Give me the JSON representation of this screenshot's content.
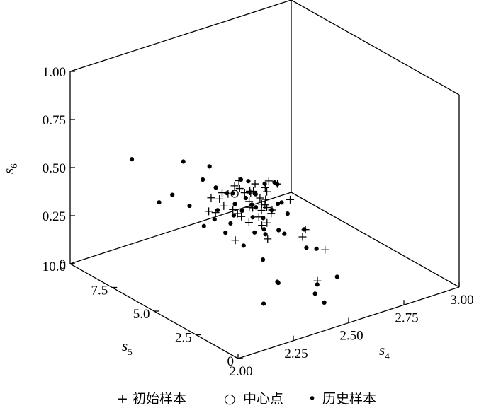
{
  "chart_data": {
    "type": "scatter",
    "projection": "3d",
    "axes": {
      "x": {
        "label": "s",
        "subscript": "4",
        "range": [
          2.0,
          3.0
        ],
        "ticks": [
          "2.00",
          "2.25",
          "2.50",
          "2.75",
          "3.00"
        ]
      },
      "y": {
        "label": "s",
        "subscript": "5",
        "range": [
          0,
          10.0
        ],
        "ticks": [
          "0",
          "2.5",
          "5.0",
          "7.5",
          "10.0"
        ]
      },
      "z": {
        "label": "s",
        "subscript": "6",
        "range": [
          0,
          1.0
        ],
        "ticks": [
          "0",
          "0.25",
          "0.50",
          "0.75",
          "1.00"
        ]
      }
    },
    "grid": false,
    "legend_position": "bottom",
    "legend": [
      {
        "symbol": "+",
        "label": "初始样本"
      },
      {
        "symbol": "○",
        "label": "中心点"
      },
      {
        "symbol": "•",
        "label": "历史样本"
      }
    ],
    "series": [
      {
        "name": "初始样本",
        "marker": "plus",
        "points": [
          [
            2.31,
            4.29,
            0.571
          ],
          [
            2.25,
            4.4,
            0.52
          ],
          [
            2.44,
            2.69,
            0.53
          ],
          [
            2.35,
            4.56,
            0.57
          ],
          [
            2.39,
            4.12,
            0.56
          ],
          [
            2.33,
            4.94,
            0.49
          ],
          [
            2.42,
            3.7,
            0.585
          ],
          [
            2.3,
            4.9,
            0.509
          ],
          [
            2.36,
            4.35,
            0.514
          ],
          [
            2.38,
            4.09,
            0.527
          ],
          [
            2.27,
            5.16,
            0.481
          ],
          [
            2.4,
            3.65,
            0.56
          ],
          [
            2.36,
            4.04,
            0.537
          ],
          [
            2.44,
            3.77,
            0.423
          ],
          [
            2.37,
            4.0,
            0.449
          ],
          [
            2.3,
            4.8,
            0.445
          ],
          [
            2.41,
            3.69,
            0.451
          ],
          [
            2.39,
            3.83,
            0.501
          ],
          [
            2.36,
            4.08,
            0.482
          ],
          [
            2.38,
            3.61,
            0.451
          ],
          [
            2.32,
            4.52,
            0.433
          ],
          [
            2.35,
            4.64,
            0.395
          ],
          [
            2.43,
            3.69,
            0.413
          ],
          [
            2.28,
            5.03,
            0.407
          ],
          [
            2.39,
            4.47,
            0.421
          ],
          [
            2.35,
            4.41,
            0.391
          ],
          [
            2.27,
            5.3,
            0.404
          ],
          [
            2.43,
            4.06,
            0.439
          ],
          [
            2.4,
            3.63,
            0.5
          ],
          [
            2.45,
            3.58,
            0.564
          ],
          [
            2.37,
            4.12,
            0.52
          ],
          [
            2.34,
            4.38,
            0.542
          ],
          [
            2.43,
            3.95,
            0.513
          ],
          [
            2.41,
            3.99,
            0.454
          ],
          [
            2.36,
            4.09,
            0.372
          ],
          [
            2.4,
            4.03,
            0.389
          ],
          [
            2.41,
            3.98,
            0.344
          ],
          [
            2.43,
            3.94,
            0.351
          ],
          [
            2.43,
            3.9,
            0.27
          ],
          [
            2.34,
            4.64,
            0.26
          ],
          [
            2.5,
            2.57,
            0.358
          ],
          [
            2.48,
            2.48,
            0.332
          ],
          [
            2.52,
            1.67,
            0.29
          ],
          [
            2.46,
            1.33,
            0.167
          ]
        ]
      },
      {
        "name": "中心点",
        "marker": "circle",
        "points": [
          [
            2.33,
            4.55,
            0.51
          ]
        ]
      },
      {
        "name": "历史样本",
        "marker": "dot",
        "points": [
          [
            2.18,
            5.63,
            0.68
          ],
          [
            2.06,
            7.12,
            0.663
          ],
          [
            2.24,
            4.86,
            0.67
          ],
          [
            2.33,
            4.18,
            0.602
          ],
          [
            2.22,
            5.0,
            0.602
          ],
          [
            2.39,
            3.55,
            0.589
          ],
          [
            2.36,
            4.13,
            0.585
          ],
          [
            2.27,
            4.88,
            0.548
          ],
          [
            2.43,
            3.49,
            0.584
          ],
          [
            2.45,
            3.59,
            0.562
          ],
          [
            2.3,
            4.61,
            0.521
          ],
          [
            2.36,
            4.28,
            0.49
          ],
          [
            2.15,
            5.89,
            0.505
          ],
          [
            2.31,
            4.27,
            0.478
          ],
          [
            2.17,
            5.13,
            0.478
          ],
          [
            2.37,
            4.05,
            0.463
          ],
          [
            2.23,
            4.43,
            0.42
          ],
          [
            2.39,
            4.08,
            0.44
          ],
          [
            2.34,
            4.24,
            0.433
          ],
          [
            2.43,
            3.66,
            0.432
          ],
          [
            2.46,
            3.69,
            0.452
          ],
          [
            2.45,
            3.33,
            0.48
          ],
          [
            2.27,
            4.77,
            0.436
          ],
          [
            2.37,
            4.0,
            0.4
          ],
          [
            2.4,
            3.77,
            0.396
          ],
          [
            2.33,
            4.6,
            0.395
          ],
          [
            2.47,
            3.24,
            0.419
          ],
          [
            2.22,
            4.93,
            0.364
          ],
          [
            2.45,
            3.51,
            0.327
          ],
          [
            2.3,
            4.7,
            0.311
          ],
          [
            2.37,
            3.89,
            0.326
          ],
          [
            2.46,
            3.3,
            0.315
          ],
          [
            2.42,
            3.9,
            0.298
          ],
          [
            2.32,
            4.66,
            0.354
          ],
          [
            2.4,
            3.72,
            0.34
          ],
          [
            2.51,
            2.78,
            0.345
          ],
          [
            2.48,
            2.25,
            0.287
          ],
          [
            2.3,
            3.62,
            0.297
          ],
          [
            2.53,
            2.31,
            0.26
          ],
          [
            2.35,
            3.13,
            0.23
          ],
          [
            2.33,
            1.95,
            0.174
          ],
          [
            2.35,
            2.27,
            0.157
          ],
          [
            2.45,
            1.21,
            0.158
          ],
          [
            2.25,
            1.77,
            0.105
          ],
          [
            2.45,
            1.34,
            0.104
          ],
          [
            2.44,
            0.66,
            0.095
          ],
          [
            2.53,
            1.08,
            0.175
          ],
          [
            2.1,
            6.02,
            0.478
          ],
          [
            2.31,
            4.39,
            0.528
          ],
          [
            2.39,
            4.09,
            0.508
          ]
        ]
      }
    ]
  },
  "legend": {
    "initial": {
      "symbol": "+",
      "label": "初始样本"
    },
    "center": {
      "symbol": "○",
      "label": "中心点"
    },
    "history": {
      "symbol": "•",
      "label": "历史样本"
    }
  }
}
